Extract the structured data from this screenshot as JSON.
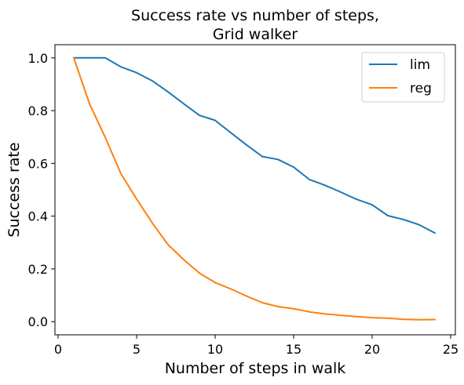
{
  "chart_data": {
    "type": "line",
    "title": [
      "Success rate vs number of steps,",
      "Grid walker"
    ],
    "xlabel": "Number of steps in walk",
    "ylabel": "Success rate",
    "xlim": [
      -0.2,
      25.3
    ],
    "ylim": [
      -0.05,
      1.05
    ],
    "xticks": [
      0,
      5,
      10,
      15,
      20,
      25
    ],
    "yticks": [
      0.0,
      0.2,
      0.4,
      0.6,
      0.8,
      1.0
    ],
    "xtick_labels": [
      "0",
      "5",
      "10",
      "15",
      "20",
      "25"
    ],
    "ytick_labels": [
      "0.0",
      "0.2",
      "0.4",
      "0.6",
      "0.8",
      "1.0"
    ],
    "grid": false,
    "legend_position": "top-right",
    "x": [
      1,
      2,
      3,
      4,
      5,
      6,
      7,
      8,
      9,
      10,
      11,
      12,
      13,
      14,
      15,
      16,
      17,
      18,
      19,
      20,
      21,
      22,
      23,
      24
    ],
    "series": [
      {
        "name": "lim",
        "color": "#1f77b4",
        "values": [
          1.0,
          1.0,
          1.0,
          0.966,
          0.944,
          0.913,
          0.871,
          0.826,
          0.782,
          0.763,
          0.716,
          0.67,
          0.626,
          0.615,
          0.586,
          0.539,
          0.517,
          0.491,
          0.464,
          0.443,
          0.402,
          0.387,
          0.367,
          0.336
        ]
      },
      {
        "name": "reg",
        "color": "#ff7f0e",
        "values": [
          1.0,
          0.826,
          0.699,
          0.561,
          0.465,
          0.374,
          0.292,
          0.235,
          0.184,
          0.148,
          0.124,
          0.097,
          0.072,
          0.057,
          0.049,
          0.037,
          0.029,
          0.024,
          0.019,
          0.015,
          0.013,
          0.009,
          0.007,
          0.008
        ]
      }
    ]
  }
}
